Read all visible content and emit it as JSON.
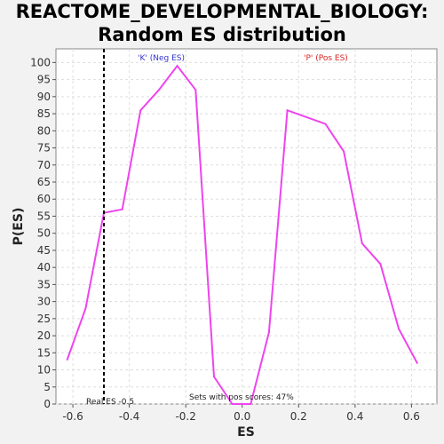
{
  "chart_data": {
    "type": "line",
    "title_line1": "REACTOME_DEVELOPMENTAL_BIOLOGY:",
    "title_line2": "Random ES distribution",
    "xlabel": "ES",
    "ylabel": "P(ES)",
    "xlim": [
      -0.66,
      0.69
    ],
    "ylim": [
      0,
      104
    ],
    "xticks": [
      -0.6,
      -0.4,
      -0.2,
      0.0,
      0.2,
      0.4,
      0.6
    ],
    "xtick_labels": [
      "-0.6",
      "-0.4",
      "-0.2",
      "0.0",
      "0.2",
      "0.4",
      "0.6"
    ],
    "yticks": [
      0,
      5,
      10,
      15,
      20,
      25,
      30,
      35,
      40,
      45,
      50,
      55,
      60,
      65,
      70,
      75,
      80,
      85,
      90,
      95,
      100
    ],
    "grid": true,
    "series": [
      {
        "color": "#ee44ee",
        "x": [
          -0.62,
          -0.555,
          -0.49,
          -0.425,
          -0.36,
          -0.295,
          -0.23,
          -0.165,
          -0.1,
          -0.035,
          0.03,
          0.095,
          0.16,
          0.295,
          0.36,
          0.425,
          0.49,
          0.555,
          0.62
        ],
        "y": [
          13,
          28,
          56,
          57,
          86,
          92,
          99,
          92,
          8,
          0,
          0,
          21,
          86,
          82,
          74,
          47,
          41,
          22,
          12
        ]
      }
    ],
    "vline": {
      "x": -0.49,
      "label": "Real ES -0.5"
    },
    "annotations": {
      "neg_label": "'K' (Neg ES)",
      "neg_color": "#3333cc",
      "pos_label": "'P' (Pos ES)",
      "pos_color": "#dd2222",
      "pos_scores": "Sets with pos scores: 47%"
    }
  }
}
